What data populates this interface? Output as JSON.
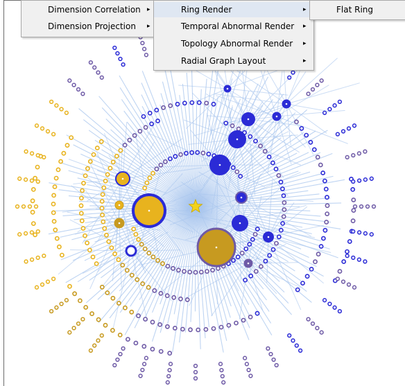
{
  "menus": {
    "level1": [
      {
        "label": "Dimension Correlation",
        "has_submenu": true
      },
      {
        "label": "Dimension Projection",
        "has_submenu": true
      }
    ],
    "level2": [
      {
        "label": "Ring Render",
        "has_submenu": true
      },
      {
        "label": "Temporal Abnormal Render",
        "has_submenu": true
      },
      {
        "label": "Topology Abnormal Render",
        "has_submenu": true
      },
      {
        "label": "Radial Graph Layout",
        "has_submenu": true
      }
    ],
    "level3": [
      {
        "label": "Flat Ring",
        "has_submenu": false
      }
    ],
    "submenu_arrow": "▸"
  },
  "graph": {
    "root_icon": "star-icon",
    "colors": {
      "edge": "#a9c6ee",
      "node_blue": "#2b2bd6",
      "node_purple": "#6e5aa6",
      "node_gold": "#e8b31e",
      "node_dark_gold": "#c79a20",
      "node_fill": "#ffffff",
      "root_star": "#f2d21b",
      "menu_bg": "#f0f0f0"
    }
  }
}
